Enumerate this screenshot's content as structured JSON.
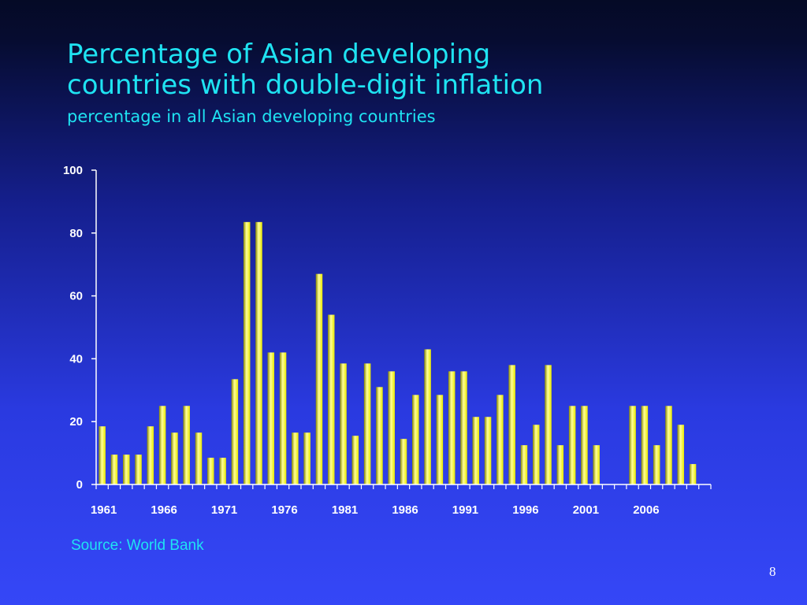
{
  "slide": {
    "title_line1": "Percentage of Asian developing",
    "title_line2": "countries with double-digit inflation",
    "subtitle": "percentage in all Asian developing countries",
    "source": "Source: World Bank",
    "page_number": "8"
  },
  "colors": {
    "title": "#1fe3f2",
    "bar_fill": "#e8e800",
    "bar_highlight": "#ffff9a",
    "axis": "#ffffff"
  },
  "chart_data": {
    "type": "bar",
    "title": "",
    "xlabel": "",
    "ylabel": "",
    "ylim": [
      0,
      100
    ],
    "yticks": [
      0,
      20,
      40,
      60,
      80,
      100
    ],
    "xtick_labels": [
      "1961",
      "1966",
      "1971",
      "1976",
      "1981",
      "1986",
      "1991",
      "1996",
      "2001",
      "2006"
    ],
    "grid": false,
    "legend": "none",
    "categories": [
      "1961",
      "1962",
      "1963",
      "1964",
      "1965",
      "1966",
      "1967",
      "1968",
      "1969",
      "1970",
      "1971",
      "1972",
      "1973",
      "1974",
      "1975",
      "1976",
      "1977",
      "1978",
      "1979",
      "1980",
      "1981",
      "1982",
      "1983",
      "1984",
      "1985",
      "1986",
      "1987",
      "1988",
      "1989",
      "1990",
      "1991",
      "1992",
      "1993",
      "1994",
      "1995",
      "1996",
      "1997",
      "1998",
      "1999",
      "2000",
      "2001",
      "2002",
      "2003",
      "2004",
      "2005",
      "2006",
      "2007",
      "2008",
      "2009",
      "2010",
      "2011"
    ],
    "values": [
      18.5,
      9.5,
      9.5,
      9.5,
      18.5,
      25,
      16.5,
      25,
      16.5,
      8.5,
      8.5,
      33.5,
      83.5,
      83.5,
      42,
      42,
      16.5,
      16.5,
      67,
      54,
      38.5,
      15.5,
      38.5,
      31,
      36,
      14.5,
      28.5,
      43,
      28.5,
      36,
      36,
      21.5,
      21.5,
      28.5,
      38,
      12.5,
      19,
      38,
      12.5,
      25,
      25,
      12.5,
      0,
      0,
      25,
      25,
      12.5,
      25,
      19,
      6.5,
      0
    ]
  }
}
